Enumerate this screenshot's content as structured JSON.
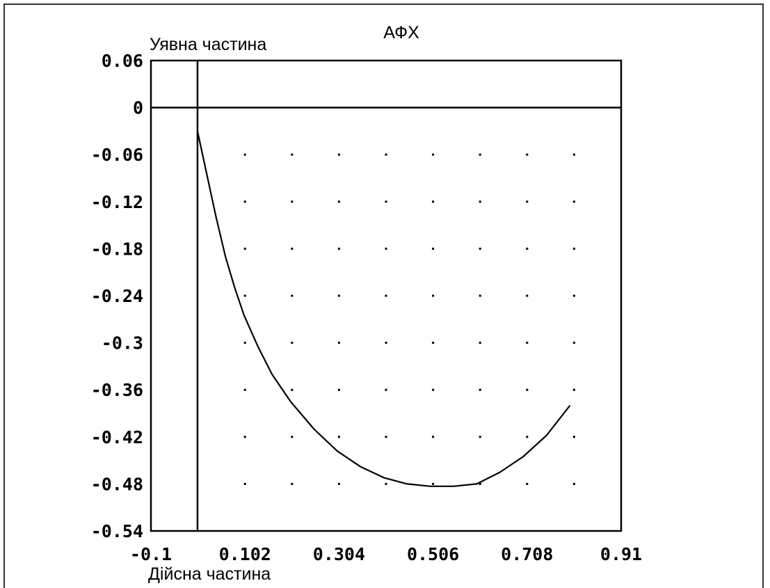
{
  "chart_data": {
    "type": "line",
    "title": "АФХ",
    "ylabel": "Уявна частина",
    "xlabel": "Дійсна частина",
    "xlim": [
      -0.1,
      0.91
    ],
    "ylim": [
      -0.54,
      0.06
    ],
    "x_ticks": [
      "-0.1",
      "0.102",
      "0.304",
      "0.506",
      "0.708",
      "0.91"
    ],
    "y_ticks": [
      "0.06",
      "0",
      "-0.06",
      "-0.12",
      "-0.18",
      "-0.24",
      "-0.3",
      "-0.36",
      "-0.42",
      "-0.48",
      "-0.54"
    ],
    "grid": "dotted",
    "series": [
      {
        "x": [
          0.0,
          0.02,
          0.04,
          0.06,
          0.08,
          0.1,
          0.13,
          0.16,
          0.2,
          0.25,
          0.3,
          0.35,
          0.4,
          0.45,
          0.5,
          0.55,
          0.6,
          0.65,
          0.7,
          0.75,
          0.8
        ],
        "y": [
          -0.03,
          -0.085,
          -0.14,
          -0.19,
          -0.23,
          -0.265,
          -0.305,
          -0.34,
          -0.375,
          -0.41,
          -0.438,
          -0.458,
          -0.472,
          -0.48,
          -0.483,
          -0.483,
          -0.48,
          -0.465,
          -0.445,
          -0.418,
          -0.38
        ]
      }
    ],
    "colors": {
      "line": "#000000",
      "grid": "#000000"
    }
  }
}
